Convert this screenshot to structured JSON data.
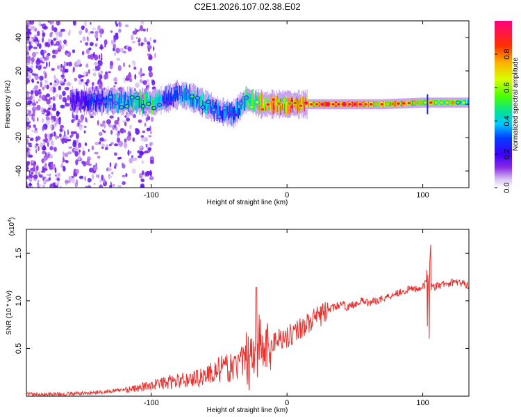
{
  "title": "C2E1.2026.107.02.38.E02",
  "chart_data": [
    {
      "type": "heatmap",
      "xlabel": "Height of straight line (km)",
      "ylabel": "Frequency (Hz)",
      "xlim": [
        -192,
        134
      ],
      "ylim": [
        -50,
        50
      ],
      "xticks": [
        -100,
        0,
        100
      ],
      "xtick_labels": [
        "-100",
        "0",
        "100"
      ],
      "yticks": [
        -40,
        -20,
        0,
        20,
        40
      ],
      "ytick_labels": [
        "-40",
        "-20",
        "0",
        "20",
        "40"
      ],
      "colorbar": {
        "label": "Normalized spectral amplitude",
        "range": [
          0,
          1
        ],
        "ticks": [
          0.0,
          0.2,
          0.4,
          0.6,
          0.8
        ],
        "tick_labels": [
          "0.0",
          "0.2",
          "0.4",
          "0.6",
          "0.8"
        ]
      },
      "ridge": {
        "description_points": [
          {
            "x": -192,
            "f": 1,
            "amp": 0.15
          },
          {
            "x": -160,
            "f": 2,
            "amp": 0.2
          },
          {
            "x": -140,
            "f": 2,
            "amp": 0.3
          },
          {
            "x": -120,
            "f": 2,
            "amp": 0.45
          },
          {
            "x": -100,
            "f": 1,
            "amp": 0.55
          },
          {
            "x": -90,
            "f": 3,
            "amp": 0.3
          },
          {
            "x": -80,
            "f": 6,
            "amp": 0.35
          },
          {
            "x": -70,
            "f": 4,
            "amp": 0.45
          },
          {
            "x": -60,
            "f": 0,
            "amp": 0.4
          },
          {
            "x": -50,
            "f": -4,
            "amp": 0.35
          },
          {
            "x": -40,
            "f": -6,
            "amp": 0.3
          },
          {
            "x": -30,
            "f": 3,
            "amp": 0.5
          },
          {
            "x": -20,
            "f": 0,
            "amp": 0.75
          },
          {
            "x": -10,
            "f": 0,
            "amp": 0.8
          },
          {
            "x": 0,
            "f": 0,
            "amp": 0.85
          },
          {
            "x": 15,
            "f": 0,
            "amp": 0.95
          },
          {
            "x": 40,
            "f": 0,
            "amp": 0.95
          },
          {
            "x": 70,
            "f": 0,
            "amp": 0.85
          },
          {
            "x": 100,
            "f": 1,
            "amp": 0.8
          },
          {
            "x": 134,
            "f": 1,
            "amp": 0.6
          }
        ]
      }
    },
    {
      "type": "line",
      "xlabel": "Height of straight line (km)",
      "ylabel": "SNR (10 * v/v)",
      "y_multiplier_label": "(x10",
      "y_multiplier_exp": "4",
      "y_multiplier_close": ")",
      "xlim": [
        -192,
        134
      ],
      "ylim": [
        0,
        1.75
      ],
      "xticks": [
        -100,
        0,
        100
      ],
      "xtick_labels": [
        "-100",
        "0",
        "100"
      ],
      "yticks": [
        0.5,
        1.0,
        1.5
      ],
      "ytick_labels": [
        "0.5",
        "1.0",
        "1.5"
      ],
      "series": [
        {
          "name": "SNR",
          "color": "#e8322f",
          "x": [
            -192,
            -170,
            -150,
            -130,
            -120,
            -110,
            -100,
            -90,
            -80,
            -70,
            -60,
            -50,
            -40,
            -30,
            -25,
            -20,
            -15,
            -12,
            -5,
            0,
            10,
            20,
            30,
            40,
            45,
            50,
            55,
            60,
            70,
            80,
            90,
            100,
            103,
            105,
            108,
            115,
            125,
            134
          ],
          "y": [
            0.02,
            0.02,
            0.03,
            0.05,
            0.07,
            0.08,
            0.12,
            0.14,
            0.16,
            0.18,
            0.22,
            0.28,
            0.3,
            0.38,
            0.45,
            0.55,
            0.45,
            0.55,
            0.62,
            0.62,
            0.72,
            0.8,
            0.9,
            0.97,
            0.93,
            0.97,
            1.0,
            0.98,
            1.02,
            1.08,
            1.12,
            1.14,
            1.2,
            1.15,
            1.14,
            1.17,
            1.2,
            1.16
          ]
        }
      ]
    }
  ]
}
